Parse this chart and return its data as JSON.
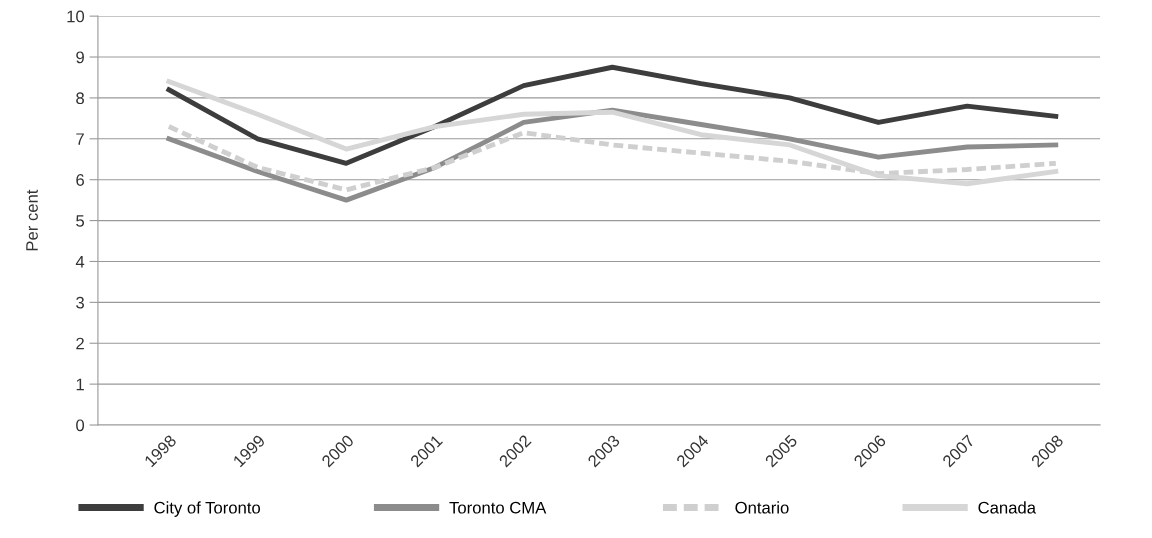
{
  "chart_data": {
    "type": "line",
    "ylabel": "Per cent",
    "categories": [
      "1998",
      "1999",
      "2000",
      "2001",
      "2002",
      "2003",
      "2004",
      "2005",
      "2006",
      "2007",
      "2008"
    ],
    "series": [
      {
        "name": "City of Toronto",
        "color": "#3d3d3d",
        "line_style": "solid",
        "values": [
          8.2,
          7.0,
          6.4,
          7.3,
          8.3,
          8.75,
          8.35,
          8.0,
          7.4,
          7.8,
          7.55
        ]
      },
      {
        "name": "Toronto CMA",
        "color": "#8c8c8d",
        "line_style": "solid",
        "values": [
          7.0,
          6.2,
          5.5,
          6.3,
          7.4,
          7.7,
          7.35,
          7.0,
          6.55,
          6.8,
          6.85
        ]
      },
      {
        "name": "Ontario",
        "color": "#cfcfcf",
        "line_style": "dashed",
        "values": [
          7.3,
          6.3,
          5.75,
          6.3,
          7.15,
          6.85,
          6.65,
          6.45,
          6.15,
          6.25,
          6.4
        ]
      },
      {
        "name": "Canada",
        "color": "#d6d6d6",
        "line_style": "solid",
        "values": [
          8.4,
          7.6,
          6.75,
          7.3,
          7.6,
          7.65,
          7.1,
          6.85,
          6.1,
          5.9,
          6.2
        ]
      }
    ],
    "ylim": [
      0,
      10
    ],
    "yticks": [
      0,
      1,
      2,
      3,
      4,
      5,
      6,
      7,
      8,
      9,
      10
    ],
    "grid": "y",
    "legend": "bottom",
    "marker": "none"
  }
}
